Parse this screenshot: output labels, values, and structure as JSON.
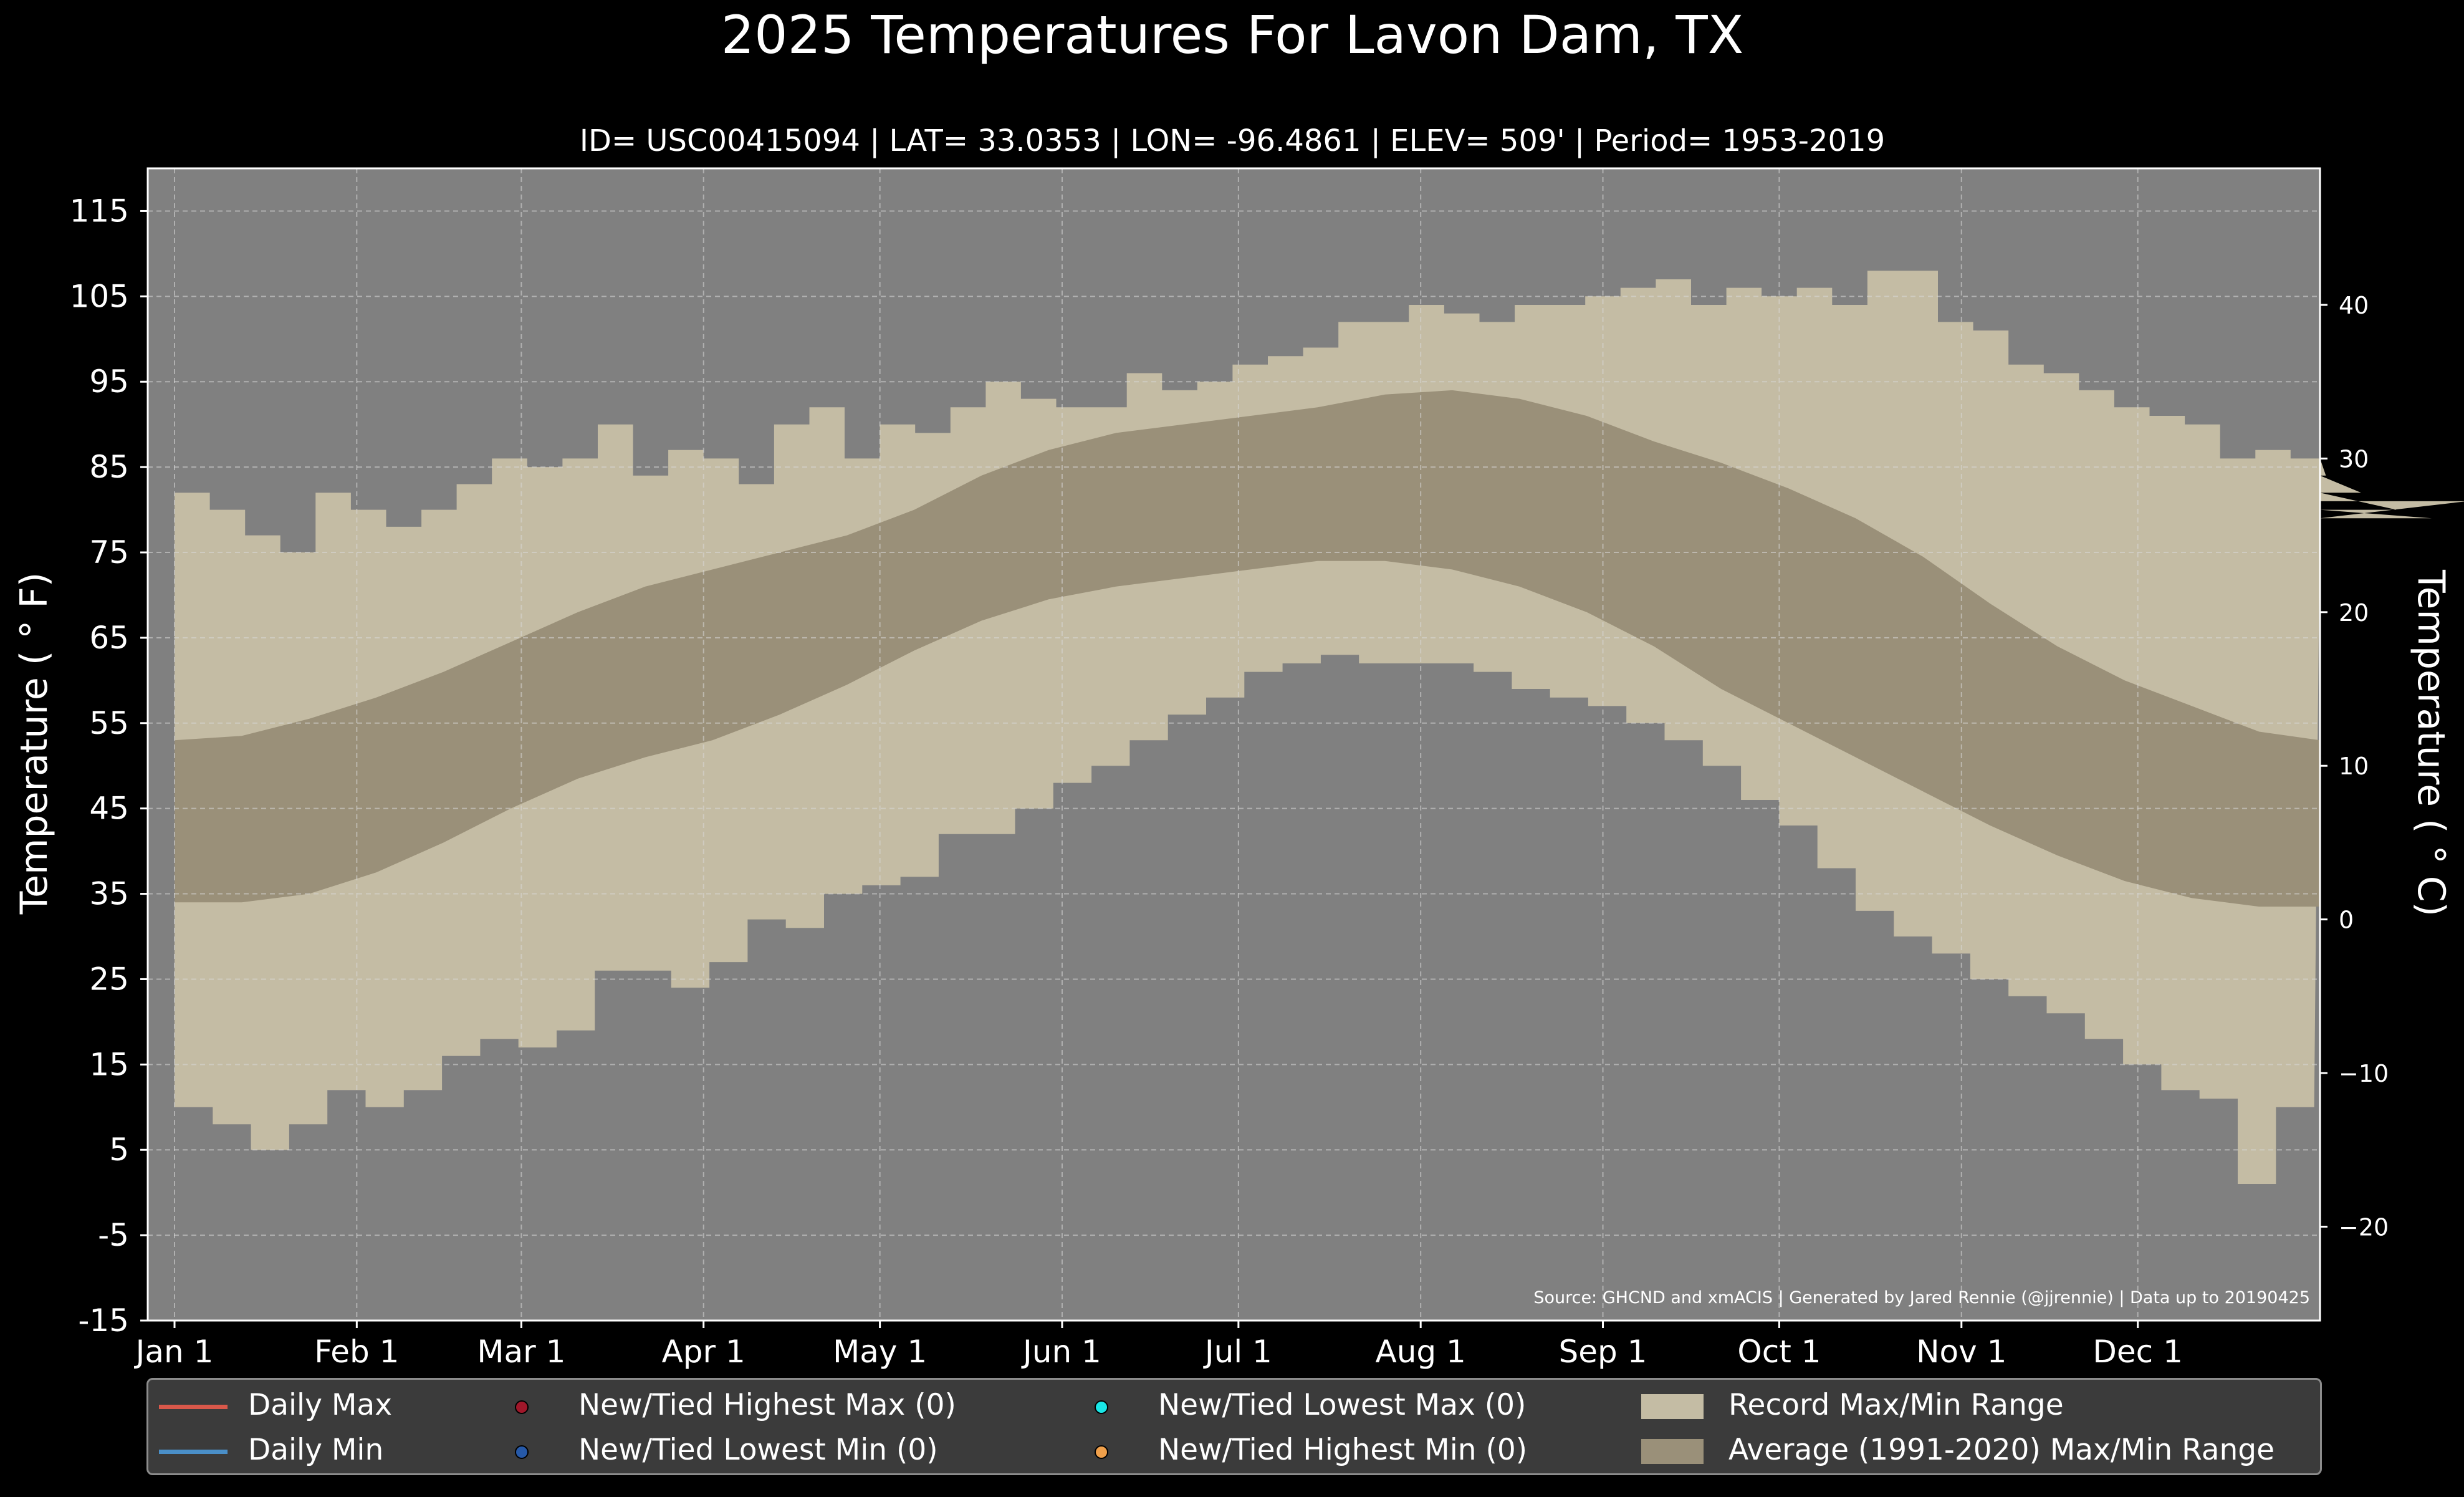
{
  "chart_data": {
    "type": "area",
    "title": "2025 Temperatures For Lavon Dam, TX",
    "subtitle": "ID= USC00415094 | LAT= 33.0353 | LON= -96.4861 | ELEV= 509' | Period= 1953-2019",
    "ylabel_left": "Temperature ($^\\circ$F)",
    "ylabel_left_display": "Temperature ( ° F)",
    "ylabel_right_display": "Temperature ( ° C)",
    "ylim_f": [
      -15,
      120
    ],
    "yticks_f": [
      115,
      105,
      95,
      85,
      75,
      65,
      55,
      45,
      35,
      25,
      15,
      5,
      -5,
      -15
    ],
    "yticks_f_labels": [
      "115",
      "105",
      "95",
      "85",
      "75",
      "65",
      "55",
      "45",
      "35",
      "25",
      "15",
      "5",
      "-5",
      "-15"
    ],
    "yticks_c": [
      40,
      30,
      20,
      10,
      0,
      -10,
      -20
    ],
    "yticks_c_labels": [
      "40",
      "30",
      "20",
      "10",
      "0",
      "−10",
      "−20"
    ],
    "xlim_days": [
      1,
      366
    ],
    "xticks": [
      {
        "label": "Jan 1",
        "day": 1
      },
      {
        "label": "Feb 1",
        "day": 32
      },
      {
        "label": "Mar 1",
        "day": 60
      },
      {
        "label": "Apr 1",
        "day": 91
      },
      {
        "label": "May 1",
        "day": 121
      },
      {
        "label": "Jun 1",
        "day": 152
      },
      {
        "label": "Jul 1",
        "day": 182
      },
      {
        "label": "Aug 1",
        "day": 213
      },
      {
        "label": "Sep 1",
        "day": 244
      },
      {
        "label": "Oct 1",
        "day": 274
      },
      {
        "label": "Nov 1",
        "day": 305
      },
      {
        "label": "Dec 1",
        "day": 335
      }
    ],
    "grid": true,
    "legend_position": "bottom",
    "source_note": "Source: GHCND and xmACIS | Generated by Jared Rennie (@jjrennie) | Data up to 20190425",
    "series": [
      {
        "name": "Record Max/Min Range",
        "color": "#c4bca4",
        "step_days": 6,
        "record_max": [
          82,
          80,
          77,
          75,
          82,
          80,
          78,
          80,
          83,
          86,
          85,
          86,
          90,
          84,
          87,
          86,
          83,
          90,
          92,
          86,
          90,
          89,
          92,
          95,
          93,
          92,
          92,
          96,
          94,
          95,
          97,
          98,
          99,
          102,
          102,
          104,
          103,
          102,
          104,
          104,
          105,
          106,
          107,
          104,
          106,
          105,
          106,
          104,
          108,
          108,
          102,
          101,
          97,
          96,
          94,
          92,
          91,
          90,
          86,
          87,
          86,
          84,
          82,
          80,
          79,
          81
        ],
        "record_min": [
          10,
          8,
          5,
          8,
          12,
          10,
          12,
          16,
          18,
          17,
          19,
          26,
          26,
          24,
          27,
          32,
          31,
          35,
          36,
          37,
          42,
          42,
          45,
          48,
          50,
          53,
          56,
          58,
          61,
          62,
          63,
          62,
          62,
          62,
          61,
          59,
          58,
          57,
          55,
          53,
          50,
          46,
          43,
          38,
          33,
          30,
          28,
          25,
          23,
          21,
          18,
          15,
          12,
          11,
          1,
          10
        ],
        "min_step_days": 6.5
      },
      {
        "name": "Average (1991-2020) Max/Min Range",
        "color": "#9a9079",
        "avg_max": [
          53,
          53.5,
          55.5,
          58,
          61,
          64.5,
          68,
          71,
          73,
          75,
          77,
          80,
          84,
          87,
          89,
          90,
          91,
          92,
          93.5,
          94,
          93,
          91,
          88,
          85.5,
          82.5,
          79,
          74.5,
          69,
          64,
          60,
          57,
          54,
          53
        ],
        "avg_min": [
          34,
          34,
          35,
          37.5,
          41,
          45,
          48.5,
          51,
          53,
          56,
          59.5,
          63.5,
          67,
          69.5,
          71,
          72,
          73,
          74,
          74,
          73,
          71,
          68,
          64,
          59,
          55,
          51,
          47,
          43,
          39.5,
          36.5,
          34.5,
          33.5,
          33.5
        ],
        "avg_step_days": 11.44
      }
    ],
    "legend": [
      {
        "label": "Daily Max",
        "kind": "line",
        "color": "#d9584a"
      },
      {
        "label": "Daily Min",
        "kind": "line",
        "color": "#4a8fc8"
      },
      {
        "label": "New/Tied Highest Max (0)",
        "kind": "dot",
        "color": "#a0172a"
      },
      {
        "label": "New/Tied Lowest Min (0)",
        "kind": "dot",
        "color": "#2659a8"
      },
      {
        "label": "New/Tied Lowest Max (0)",
        "kind": "dot",
        "color": "#19e6e6"
      },
      {
        "label": "New/Tied Highest Min (0)",
        "kind": "dot",
        "color": "#f0a04b"
      },
      {
        "label": "Record Max/Min Range",
        "kind": "patch",
        "color": "#c4bca4"
      },
      {
        "label": "Average (1991-2020) Max/Min Range",
        "kind": "patch",
        "color": "#9a9079"
      }
    ]
  }
}
